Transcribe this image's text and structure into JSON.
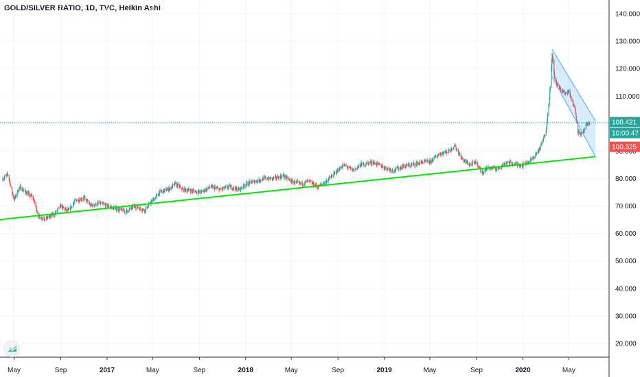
{
  "header": {
    "title": "GOLD/SILVER RATIO, 1D, TVC, Heikin Ashi"
  },
  "price_tags": [
    {
      "text": "100.421",
      "color": "#26a69a"
    },
    {
      "text": "10:00:47",
      "color": "#26a69a"
    },
    {
      "text": "100.325",
      "color": "#ef5350"
    }
  ],
  "icons": {
    "logo": "tradingview-logo-icon"
  },
  "chart_data": {
    "type": "candlestick",
    "title": "GOLD/SILVER RATIO, 1D, TVC, Heikin Ashi",
    "x_ticks": [
      {
        "label": "May",
        "date": "2016-05-01",
        "bold": false
      },
      {
        "label": "Sep",
        "date": "2016-09-01",
        "bold": false
      },
      {
        "label": "2017",
        "date": "2017-01-01",
        "bold": true
      },
      {
        "label": "May",
        "date": "2017-05-01",
        "bold": false
      },
      {
        "label": "Sep",
        "date": "2017-09-01",
        "bold": false
      },
      {
        "label": "2018",
        "date": "2018-01-01",
        "bold": true
      },
      {
        "label": "May",
        "date": "2018-05-01",
        "bold": false
      },
      {
        "label": "Sep",
        "date": "2018-09-01",
        "bold": false
      },
      {
        "label": "2019",
        "date": "2019-01-01",
        "bold": true
      },
      {
        "label": "May",
        "date": "2019-05-01",
        "bold": false
      },
      {
        "label": "Sep",
        "date": "2019-09-01",
        "bold": false
      },
      {
        "label": "2020",
        "date": "2020-01-01",
        "bold": true
      },
      {
        "label": "May",
        "date": "2020-05-01",
        "bold": false
      }
    ],
    "y_ticks": [
      "20.000",
      "30.000",
      "40.000",
      "50.000",
      "60.000",
      "70.000",
      "80.000",
      "90.000",
      "100.000",
      "110.000",
      "120.000",
      "130.000",
      "140.000"
    ],
    "ylim": [
      15,
      145
    ],
    "last_price": 100.421,
    "series_close": [
      [
        "2016-04-01",
        80
      ],
      [
        "2016-04-15",
        81.5
      ],
      [
        "2016-05-01",
        72
      ],
      [
        "2016-05-15",
        77
      ],
      [
        "2016-06-01",
        75
      ],
      [
        "2016-06-20",
        73
      ],
      [
        "2016-07-05",
        66
      ],
      [
        "2016-07-25",
        65.5
      ],
      [
        "2016-08-15",
        67
      ],
      [
        "2016-09-01",
        70
      ],
      [
        "2016-09-20",
        68
      ],
      [
        "2016-10-10",
        72
      ],
      [
        "2016-11-01",
        73
      ],
      [
        "2016-11-20",
        70
      ],
      [
        "2016-12-10",
        71
      ],
      [
        "2017-01-01",
        70
      ],
      [
        "2017-01-25",
        69
      ],
      [
        "2017-02-20",
        68
      ],
      [
        "2017-03-15",
        70
      ],
      [
        "2017-04-10",
        68.5
      ],
      [
        "2017-05-01",
        72
      ],
      [
        "2017-05-20",
        75
      ],
      [
        "2017-06-10",
        76
      ],
      [
        "2017-06-30",
        78
      ],
      [
        "2017-07-20",
        76
      ],
      [
        "2017-08-15",
        75.5
      ],
      [
        "2017-09-05",
        75
      ],
      [
        "2017-09-30",
        77
      ],
      [
        "2017-10-25",
        76
      ],
      [
        "2017-11-20",
        77
      ],
      [
        "2017-12-15",
        76
      ],
      [
        "2018-01-01",
        78
      ],
      [
        "2018-01-25",
        79
      ],
      [
        "2018-02-20",
        80
      ],
      [
        "2018-03-15",
        80
      ],
      [
        "2018-04-10",
        81
      ],
      [
        "2018-05-01",
        79
      ],
      [
        "2018-05-25",
        78
      ],
      [
        "2018-06-15",
        79
      ],
      [
        "2018-07-10",
        77
      ],
      [
        "2018-08-01",
        79
      ],
      [
        "2018-08-25",
        82
      ],
      [
        "2018-09-15",
        85
      ],
      [
        "2018-10-10",
        83
      ],
      [
        "2018-11-01",
        85
      ],
      [
        "2018-12-01",
        86
      ],
      [
        "2019-01-01",
        84
      ],
      [
        "2019-01-25",
        83
      ],
      [
        "2019-02-20",
        84.5
      ],
      [
        "2019-03-15",
        85
      ],
      [
        "2019-04-10",
        86
      ],
      [
        "2019-05-01",
        86
      ],
      [
        "2019-05-25",
        89
      ],
      [
        "2019-06-20",
        90
      ],
      [
        "2019-07-05",
        92
      ],
      [
        "2019-07-25",
        87
      ],
      [
        "2019-08-15",
        85
      ],
      [
        "2019-09-01",
        86
      ],
      [
        "2019-09-15",
        82
      ],
      [
        "2019-10-01",
        84
      ],
      [
        "2019-10-25",
        83.5
      ],
      [
        "2019-11-20",
        86
      ],
      [
        "2019-12-15",
        85
      ],
      [
        "2020-01-01",
        85
      ],
      [
        "2020-01-25",
        87
      ],
      [
        "2020-02-15",
        91
      ],
      [
        "2020-03-01",
        97
      ],
      [
        "2020-03-10",
        108
      ],
      [
        "2020-03-18",
        125
      ],
      [
        "2020-03-25",
        116
      ],
      [
        "2020-04-05",
        113
      ],
      [
        "2020-04-20",
        111
      ],
      [
        "2020-05-01",
        112
      ],
      [
        "2020-05-10",
        108
      ],
      [
        "2020-05-18",
        105
      ],
      [
        "2020-05-25",
        97
      ],
      [
        "2020-06-05",
        96
      ],
      [
        "2020-06-15",
        99
      ],
      [
        "2020-06-25",
        100.4
      ]
    ],
    "trendlines": [
      {
        "name": "support",
        "color": "#00e600",
        "from": [
          "2016-03-20",
          65
        ],
        "to": [
          "2020-07-10",
          88
        ]
      },
      {
        "name": "channel-upper",
        "color": "#4fa8f7",
        "from": [
          "2020-03-18",
          127
        ],
        "to": [
          "2020-07-10",
          101
        ]
      },
      {
        "name": "channel-lower",
        "color": "#4fa8f7",
        "from": [
          "2020-03-18",
          117
        ],
        "to": [
          "2020-07-10",
          88
        ]
      }
    ],
    "grid": true,
    "colors": {
      "up": "#26a69a",
      "down": "#ef5350",
      "grid": "#f0f3fa",
      "axis_text": "#131722",
      "last_price_line": "#26a69a"
    }
  }
}
